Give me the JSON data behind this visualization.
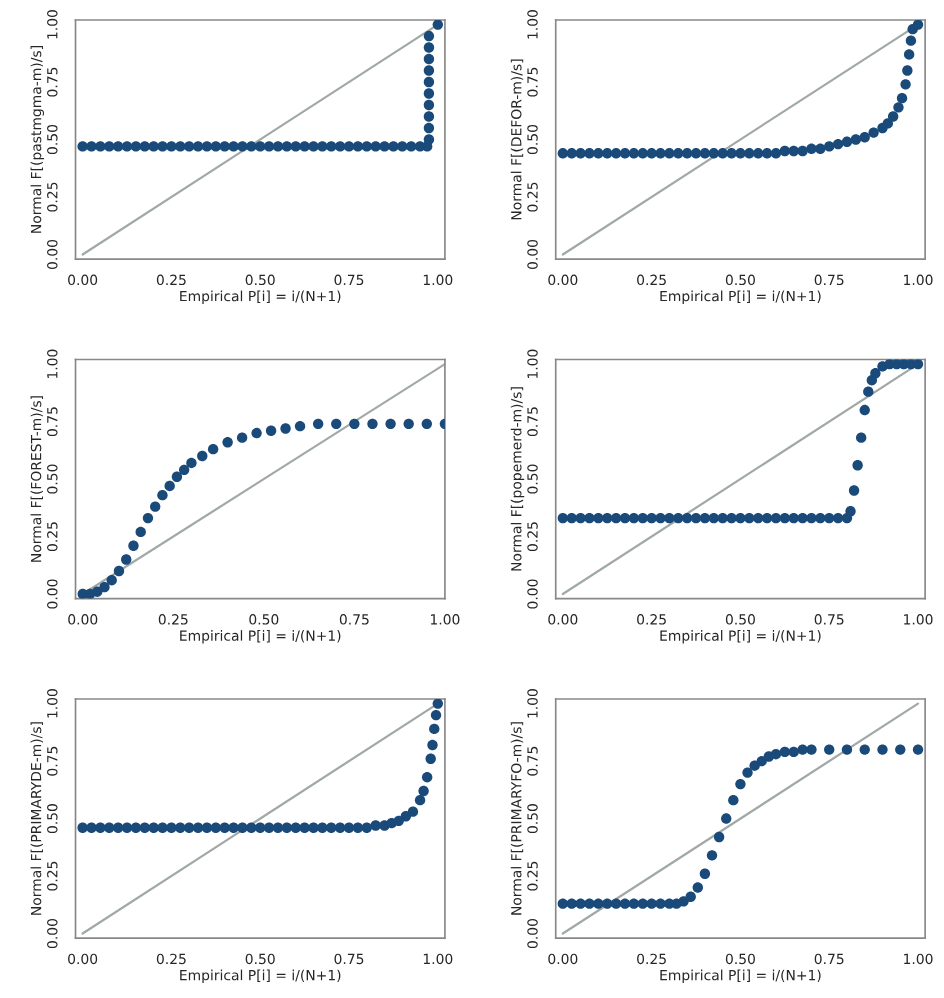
{
  "chart_data": [
    {
      "type": "scatter",
      "xlabel": "Empirical P[i] = i/(N+1)",
      "ylabel": "Normal F[(pastmgma-m)/s]",
      "xlim": [
        -0.02,
        1.02
      ],
      "ylim": [
        -0.02,
        1.02
      ],
      "xticks": [
        {
          "value": 0,
          "label": "0.00"
        },
        {
          "value": 0.25,
          "label": "0.25"
        },
        {
          "value": 0.5,
          "label": "0.50"
        },
        {
          "value": 0.75,
          "label": "0.75"
        },
        {
          "value": 1,
          "label": "1.00"
        }
      ],
      "yticks": [
        {
          "value": 0,
          "label": "0.00"
        },
        {
          "value": 0.25,
          "label": "0.25"
        },
        {
          "value": 0.5,
          "label": "0.50"
        },
        {
          "value": 0.75,
          "label": "0.75"
        },
        {
          "value": 1,
          "label": "1.00"
        }
      ],
      "grid": false,
      "legend": false,
      "series": [
        {
          "marker": "circle",
          "color": "#1a4a7a",
          "x": [
            0,
            0.025,
            0.05,
            0.075,
            0.1,
            0.125,
            0.15,
            0.175,
            0.2,
            0.225,
            0.25,
            0.275,
            0.3,
            0.325,
            0.35,
            0.375,
            0.4,
            0.425,
            0.45,
            0.475,
            0.5,
            0.525,
            0.55,
            0.575,
            0.6,
            0.625,
            0.65,
            0.675,
            0.7,
            0.725,
            0.75,
            0.775,
            0.8,
            0.825,
            0.85,
            0.875,
            0.9,
            0.925,
            0.95,
            0.97,
            0.975,
            0.975,
            0.975,
            0.975,
            0.975,
            0.975,
            0.975,
            0.975,
            0.975,
            0.975,
            1.0
          ],
          "values": [
            0.47,
            0.47,
            0.47,
            0.47,
            0.47,
            0.47,
            0.47,
            0.47,
            0.47,
            0.47,
            0.47,
            0.47,
            0.47,
            0.47,
            0.47,
            0.47,
            0.47,
            0.47,
            0.47,
            0.47,
            0.47,
            0.47,
            0.47,
            0.47,
            0.47,
            0.47,
            0.47,
            0.47,
            0.47,
            0.47,
            0.47,
            0.47,
            0.47,
            0.47,
            0.47,
            0.47,
            0.47,
            0.47,
            0.47,
            0.47,
            0.5,
            0.55,
            0.6,
            0.65,
            0.7,
            0.75,
            0.8,
            0.85,
            0.9,
            0.95,
            1.0
          ]
        },
        {
          "type": "line",
          "marker": "none",
          "color": "#a0a8a8",
          "x": [
            0,
            1
          ],
          "values": [
            0,
            1
          ]
        }
      ]
    },
    {
      "type": "scatter",
      "xlabel": "Empirical P[i] = i/(N+1)",
      "ylabel": "Normal F[(DEFOR-m)/s]",
      "xlim": [
        -0.02,
        1.02
      ],
      "ylim": [
        -0.02,
        1.02
      ],
      "xticks": [
        {
          "value": 0,
          "label": "0.00"
        },
        {
          "value": 0.25,
          "label": "0.25"
        },
        {
          "value": 0.5,
          "label": "0.50"
        },
        {
          "value": 0.75,
          "label": "0.75"
        },
        {
          "value": 1,
          "label": "1.00"
        }
      ],
      "yticks": [
        {
          "value": 0,
          "label": "0.00"
        },
        {
          "value": 0.25,
          "label": "0.25"
        },
        {
          "value": 0.5,
          "label": "0.50"
        },
        {
          "value": 0.75,
          "label": "0.75"
        },
        {
          "value": 1,
          "label": "1.00"
        }
      ],
      "grid": false,
      "legend": false,
      "series": [
        {
          "marker": "circle",
          "color": "#1a4a7a",
          "x": [
            0,
            0.025,
            0.05,
            0.075,
            0.1,
            0.125,
            0.15,
            0.175,
            0.2,
            0.225,
            0.25,
            0.275,
            0.3,
            0.325,
            0.35,
            0.375,
            0.4,
            0.425,
            0.45,
            0.475,
            0.5,
            0.525,
            0.55,
            0.575,
            0.6,
            0.625,
            0.65,
            0.675,
            0.7,
            0.725,
            0.75,
            0.775,
            0.8,
            0.825,
            0.85,
            0.875,
            0.9,
            0.915,
            0.93,
            0.945,
            0.955,
            0.965,
            0.97,
            0.975,
            0.98,
            0.985,
            1.0
          ],
          "values": [
            0.44,
            0.44,
            0.44,
            0.44,
            0.44,
            0.44,
            0.44,
            0.44,
            0.44,
            0.44,
            0.44,
            0.44,
            0.44,
            0.44,
            0.44,
            0.44,
            0.44,
            0.44,
            0.44,
            0.44,
            0.44,
            0.44,
            0.44,
            0.44,
            0.44,
            0.45,
            0.45,
            0.45,
            0.46,
            0.46,
            0.47,
            0.48,
            0.49,
            0.5,
            0.51,
            0.53,
            0.55,
            0.57,
            0.6,
            0.64,
            0.68,
            0.74,
            0.8,
            0.87,
            0.93,
            0.98,
            1.0
          ]
        },
        {
          "type": "line",
          "marker": "none",
          "color": "#a0a8a8",
          "x": [
            0,
            1
          ],
          "values": [
            0,
            1
          ]
        }
      ]
    },
    {
      "type": "scatter",
      "xlabel": "Empirical P[i] = i/(N+1)",
      "ylabel": "Normal F[(FOREST-m)/s]",
      "xlim": [
        -0.02,
        1.0
      ],
      "ylim": [
        -0.02,
        1.02
      ],
      "xticks": [
        {
          "value": 0,
          "label": "0.00"
        },
        {
          "value": 0.25,
          "label": "0.25"
        },
        {
          "value": 0.5,
          "label": "0.50"
        },
        {
          "value": 0.75,
          "label": "0.75"
        },
        {
          "value": 1,
          "label": "1.00"
        }
      ],
      "yticks": [
        {
          "value": 0,
          "label": "0.00"
        },
        {
          "value": 0.25,
          "label": "0.25"
        },
        {
          "value": 0.5,
          "label": "0.50"
        },
        {
          "value": 0.75,
          "label": "0.75"
        },
        {
          "value": 1,
          "label": "1.00"
        }
      ],
      "grid": false,
      "legend": false,
      "series": [
        {
          "marker": "circle",
          "color": "#1a4a7a",
          "x": [
            0,
            0.02,
            0.04,
            0.06,
            0.08,
            0.1,
            0.12,
            0.14,
            0.16,
            0.18,
            0.2,
            0.22,
            0.24,
            0.26,
            0.28,
            0.3,
            0.33,
            0.36,
            0.4,
            0.44,
            0.48,
            0.52,
            0.56,
            0.6,
            0.65,
            0.7,
            0.75,
            0.8,
            0.85,
            0.9,
            0.95,
            1.0
          ],
          "values": [
            0.0,
            0.0,
            0.01,
            0.03,
            0.06,
            0.1,
            0.15,
            0.21,
            0.27,
            0.33,
            0.38,
            0.43,
            0.47,
            0.51,
            0.54,
            0.57,
            0.6,
            0.63,
            0.66,
            0.68,
            0.7,
            0.71,
            0.72,
            0.73,
            0.74,
            0.74,
            0.74,
            0.74,
            0.74,
            0.74,
            0.74,
            0.74
          ]
        },
        {
          "type": "line",
          "marker": "none",
          "color": "#a0a8a8",
          "x": [
            0,
            1
          ],
          "values": [
            0,
            1
          ]
        }
      ]
    },
    {
      "type": "scatter",
      "xlabel": "Empirical P[i] = i/(N+1)",
      "ylabel": "Normal F[(popemerd-m)/s]",
      "xlim": [
        -0.02,
        1.02
      ],
      "ylim": [
        -0.02,
        1.02
      ],
      "xticks": [
        {
          "value": 0,
          "label": "0.00"
        },
        {
          "value": 0.25,
          "label": "0.25"
        },
        {
          "value": 0.5,
          "label": "0.50"
        },
        {
          "value": 0.75,
          "label": "0.75"
        },
        {
          "value": 1,
          "label": "1.00"
        }
      ],
      "yticks": [
        {
          "value": 0,
          "label": "0.00"
        },
        {
          "value": 0.25,
          "label": "0.25"
        },
        {
          "value": 0.5,
          "label": "0.50"
        },
        {
          "value": 0.75,
          "label": "0.75"
        },
        {
          "value": 1,
          "label": "1.00"
        }
      ],
      "grid": false,
      "legend": false,
      "series": [
        {
          "marker": "circle",
          "color": "#1a4a7a",
          "x": [
            0,
            0.025,
            0.05,
            0.075,
            0.1,
            0.125,
            0.15,
            0.175,
            0.2,
            0.225,
            0.25,
            0.275,
            0.3,
            0.325,
            0.35,
            0.375,
            0.4,
            0.425,
            0.45,
            0.475,
            0.5,
            0.525,
            0.55,
            0.575,
            0.6,
            0.625,
            0.65,
            0.675,
            0.7,
            0.725,
            0.75,
            0.775,
            0.8,
            0.81,
            0.82,
            0.83,
            0.84,
            0.85,
            0.86,
            0.87,
            0.88,
            0.9,
            0.92,
            0.94,
            0.96,
            0.98,
            1.0
          ],
          "values": [
            0.33,
            0.33,
            0.33,
            0.33,
            0.33,
            0.33,
            0.33,
            0.33,
            0.33,
            0.33,
            0.33,
            0.33,
            0.33,
            0.33,
            0.33,
            0.33,
            0.33,
            0.33,
            0.33,
            0.33,
            0.33,
            0.33,
            0.33,
            0.33,
            0.33,
            0.33,
            0.33,
            0.33,
            0.33,
            0.33,
            0.33,
            0.33,
            0.33,
            0.36,
            0.45,
            0.56,
            0.68,
            0.8,
            0.88,
            0.93,
            0.96,
            0.99,
            1.0,
            1.0,
            1.0,
            1.0,
            1.0
          ]
        },
        {
          "type": "line",
          "marker": "none",
          "color": "#a0a8a8",
          "x": [
            0,
            1
          ],
          "values": [
            0,
            1
          ]
        }
      ]
    },
    {
      "type": "scatter",
      "xlabel": "Empirical P[i] = i/(N+1)",
      "ylabel": "Normal F[(PRIMARYDE-m)/s]",
      "xlim": [
        -0.02,
        1.02
      ],
      "ylim": [
        -0.02,
        1.02
      ],
      "xticks": [
        {
          "value": 0,
          "label": "0.00"
        },
        {
          "value": 0.25,
          "label": "0.25"
        },
        {
          "value": 0.5,
          "label": "0.50"
        },
        {
          "value": 0.75,
          "label": "0.75"
        },
        {
          "value": 1,
          "label": "1.00"
        }
      ],
      "yticks": [
        {
          "value": 0,
          "label": "0.00"
        },
        {
          "value": 0.25,
          "label": "0.25"
        },
        {
          "value": 0.5,
          "label": "0.50"
        },
        {
          "value": 0.75,
          "label": "0.75"
        },
        {
          "value": 1,
          "label": "1.00"
        }
      ],
      "grid": false,
      "legend": false,
      "series": [
        {
          "marker": "circle",
          "color": "#1a4a7a",
          "x": [
            0,
            0.025,
            0.05,
            0.075,
            0.1,
            0.125,
            0.15,
            0.175,
            0.2,
            0.225,
            0.25,
            0.275,
            0.3,
            0.325,
            0.35,
            0.375,
            0.4,
            0.425,
            0.45,
            0.475,
            0.5,
            0.525,
            0.55,
            0.575,
            0.6,
            0.625,
            0.65,
            0.675,
            0.7,
            0.725,
            0.75,
            0.775,
            0.8,
            0.825,
            0.85,
            0.87,
            0.89,
            0.91,
            0.93,
            0.95,
            0.96,
            0.97,
            0.98,
            0.985,
            0.99,
            0.995,
            1.0
          ],
          "values": [
            0.46,
            0.46,
            0.46,
            0.46,
            0.46,
            0.46,
            0.46,
            0.46,
            0.46,
            0.46,
            0.46,
            0.46,
            0.46,
            0.46,
            0.46,
            0.46,
            0.46,
            0.46,
            0.46,
            0.46,
            0.46,
            0.46,
            0.46,
            0.46,
            0.46,
            0.46,
            0.46,
            0.46,
            0.46,
            0.46,
            0.46,
            0.46,
            0.46,
            0.47,
            0.47,
            0.48,
            0.49,
            0.51,
            0.53,
            0.58,
            0.62,
            0.68,
            0.76,
            0.82,
            0.89,
            0.95,
            1.0
          ]
        },
        {
          "type": "line",
          "marker": "none",
          "color": "#a0a8a8",
          "x": [
            0,
            1
          ],
          "values": [
            0,
            1
          ]
        }
      ]
    },
    {
      "type": "scatter",
      "xlabel": "Empirical P[i] = i/(N+1)",
      "ylabel": "Normal F[(PRIMARYFO-m)/s]",
      "xlim": [
        -0.02,
        1.02
      ],
      "ylim": [
        -0.02,
        1.02
      ],
      "xticks": [
        {
          "value": 0,
          "label": "0.00"
        },
        {
          "value": 0.25,
          "label": "0.25"
        },
        {
          "value": 0.5,
          "label": "0.50"
        },
        {
          "value": 0.75,
          "label": "0.75"
        },
        {
          "value": 1,
          "label": "1.00"
        }
      ],
      "yticks": [
        {
          "value": 0,
          "label": "0.00"
        },
        {
          "value": 0.25,
          "label": "0.25"
        },
        {
          "value": 0.5,
          "label": "0.50"
        },
        {
          "value": 0.75,
          "label": "0.75"
        },
        {
          "value": 1,
          "label": "1.00"
        }
      ],
      "grid": false,
      "legend": false,
      "series": [
        {
          "marker": "circle",
          "color": "#1a4a7a",
          "x": [
            0,
            0.025,
            0.05,
            0.075,
            0.1,
            0.125,
            0.15,
            0.175,
            0.2,
            0.225,
            0.25,
            0.275,
            0.3,
            0.32,
            0.34,
            0.36,
            0.38,
            0.4,
            0.42,
            0.44,
            0.46,
            0.48,
            0.5,
            0.52,
            0.54,
            0.56,
            0.58,
            0.6,
            0.625,
            0.65,
            0.675,
            0.7,
            0.75,
            0.8,
            0.85,
            0.9,
            0.95,
            1.0
          ],
          "values": [
            0.13,
            0.13,
            0.13,
            0.13,
            0.13,
            0.13,
            0.13,
            0.13,
            0.13,
            0.13,
            0.13,
            0.13,
            0.13,
            0.13,
            0.14,
            0.16,
            0.2,
            0.26,
            0.34,
            0.42,
            0.5,
            0.58,
            0.65,
            0.7,
            0.73,
            0.75,
            0.77,
            0.78,
            0.79,
            0.79,
            0.8,
            0.8,
            0.8,
            0.8,
            0.8,
            0.8,
            0.8,
            0.8
          ]
        },
        {
          "type": "line",
          "marker": "none",
          "color": "#a0a8a8",
          "x": [
            0,
            1
          ],
          "values": [
            0,
            1
          ]
        }
      ]
    }
  ]
}
